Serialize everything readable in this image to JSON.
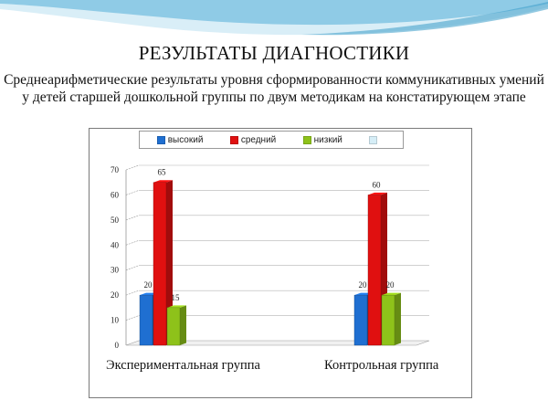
{
  "slide": {
    "title": "РЕЗУЛЬТАТЫ ДИАГНОСТИКИ",
    "subtitle": "Среднеарифметические результаты уровня сформированности коммуникативных умений у детей старшей дошкольной группы по двум методикам на констатирующем этапе"
  },
  "colors": {
    "wave_light": "#d9eef7",
    "wave_mid": "#8fcbe6",
    "wave_dark": "#3a9cc9"
  },
  "chart_data": {
    "type": "bar",
    "title": "",
    "xlabel": "",
    "ylabel": "",
    "ylim": [
      0,
      70
    ],
    "yticks": [
      0,
      10,
      20,
      30,
      40,
      50,
      60,
      70
    ],
    "grid": true,
    "legend_position": "top",
    "categories": [
      "Экспериментальная группа",
      "Контрольная группа"
    ],
    "series": [
      {
        "name": "высокий",
        "color": "#1f6fd1",
        "values": [
          20,
          20
        ]
      },
      {
        "name": "средний",
        "color": "#e01010",
        "values": [
          65,
          60
        ]
      },
      {
        "name": "низкий",
        "color": "#8ec21a",
        "values": [
          15,
          20
        ]
      },
      {
        "name": "",
        "color": "#d6eef7",
        "values": [
          null,
          null
        ]
      }
    ],
    "data_labels": [
      [
        "20",
        "65",
        "15",
        null
      ],
      [
        "20",
        "60",
        "20",
        null
      ]
    ]
  }
}
